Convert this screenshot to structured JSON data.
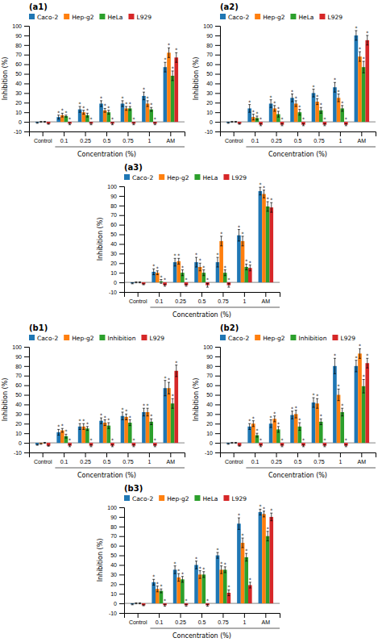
{
  "chart_data": [
    {
      "type": "bar",
      "title": "(a1)",
      "xlabel": "Concentration (%)",
      "ylabel": "Inhibition (%)",
      "categories": [
        "Control",
        "0.1",
        "0.25",
        "0.5",
        "0.75",
        "1",
        "AM"
      ],
      "series": [
        {
          "name": "Caco-2",
          "values": [
            -1,
            5,
            13,
            19,
            19,
            27,
            57
          ],
          "errors": [
            0.5,
            2,
            3,
            3,
            3,
            4,
            5
          ],
          "annotations": [
            null,
            "*",
            "*",
            "*",
            "*",
            "*",
            "*"
          ]
        },
        {
          "name": "Hep-g2",
          "values": [
            0,
            7,
            10,
            12,
            14,
            19,
            72
          ],
          "errors": [
            0.5,
            2,
            2,
            2,
            2,
            3,
            5
          ],
          "annotations": [
            null,
            "*",
            "*",
            "*",
            "*",
            "*",
            "*"
          ]
        },
        {
          "name": "HeLa",
          "values": [
            0,
            6,
            7,
            10,
            14,
            13,
            48
          ],
          "errors": [
            0.5,
            1,
            2,
            2,
            2,
            2,
            5
          ],
          "annotations": [
            null,
            "*",
            "*",
            "*",
            "*",
            "*",
            "*"
          ]
        },
        {
          "name": "L929",
          "values": [
            -2,
            -2,
            -2,
            -2,
            -2,
            -2,
            67
          ],
          "errors": [
            0.5,
            1,
            1,
            1,
            1,
            1,
            5
          ],
          "annotations": [
            null,
            "*",
            "*",
            "*",
            "*",
            "*",
            "*"
          ]
        }
      ],
      "ylim": [
        -10,
        100
      ],
      "yticks": [
        -10,
        0,
        10,
        20,
        30,
        40,
        50,
        60,
        70,
        80,
        90,
        100
      ],
      "grid": false,
      "legend": "top"
    },
    {
      "type": "bar",
      "title": "(a2)",
      "xlabel": "Concentration (%)",
      "ylabel": "Inhibition (%)",
      "categories": [
        "Control",
        "0.1",
        "0.25",
        "0.5",
        "0.75",
        "1",
        "AM"
      ],
      "series": [
        {
          "name": "Caco-2",
          "values": [
            -1,
            14,
            19,
            25,
            30,
            36,
            90
          ],
          "errors": [
            0.5,
            4,
            4,
            4,
            4,
            5,
            5
          ],
          "annotations": [
            null,
            "*",
            "*",
            "*",
            "*",
            "*",
            "*"
          ]
        },
        {
          "name": "Hep-g2",
          "values": [
            0,
            5,
            14,
            19,
            21,
            25,
            68
          ],
          "errors": [
            0.5,
            3,
            3,
            3,
            3,
            4,
            5
          ],
          "annotations": [
            null,
            "*",
            "*",
            "*",
            "*",
            "*",
            "*"
          ]
        },
        {
          "name": "HeLa",
          "values": [
            0,
            4,
            8,
            10,
            12,
            14,
            57
          ],
          "errors": [
            0.5,
            2,
            3,
            3,
            3,
            3,
            6
          ],
          "annotations": [
            null,
            "*",
            "*",
            "*",
            "*",
            "*",
            "*"
          ]
        },
        {
          "name": "L929",
          "values": [
            -2,
            -3,
            -3,
            -3,
            -3,
            -3,
            85
          ],
          "errors": [
            0.5,
            1,
            1,
            1,
            1,
            1,
            5
          ],
          "annotations": [
            null,
            "*",
            "*",
            "*",
            "*",
            "*",
            "*"
          ]
        }
      ],
      "ylim": [
        -10,
        100
      ],
      "yticks": [
        -10,
        0,
        10,
        20,
        30,
        40,
        50,
        60,
        70,
        80,
        90,
        100
      ],
      "grid": false,
      "legend": "top"
    },
    {
      "type": "bar",
      "title": "(a3)",
      "xlabel": "Concentration (%)",
      "ylabel": "Inhibition (%)",
      "categories": [
        "Control",
        "0.1",
        "0.25",
        "0.5",
        "0.75",
        "1",
        "AM"
      ],
      "series": [
        {
          "name": "Caco-2",
          "values": [
            -1,
            11,
            21,
            21,
            21,
            49,
            95
          ],
          "errors": [
            0.5,
            3,
            4,
            5,
            5,
            6,
            4
          ],
          "annotations": [
            null,
            "*",
            "*",
            "*",
            "*",
            "*",
            "*"
          ]
        },
        {
          "name": "Hep-g2",
          "values": [
            0,
            10,
            22,
            16,
            43,
            43,
            92
          ],
          "errors": [
            0.5,
            2,
            3,
            4,
            5,
            5,
            4
          ],
          "annotations": [
            null,
            "*",
            "*",
            "*",
            "*",
            "*",
            "*"
          ]
        },
        {
          "name": "HeLa",
          "values": [
            0,
            1,
            10,
            10,
            10,
            16,
            79
          ],
          "errors": [
            0.5,
            2,
            3,
            3,
            3,
            3,
            5
          ],
          "annotations": [
            null,
            "*",
            "*",
            "*",
            "*",
            "*",
            "*"
          ]
        },
        {
          "name": "L929",
          "values": [
            -2,
            -3,
            -3,
            -3,
            -3,
            15,
            78
          ],
          "errors": [
            0.5,
            1,
            1,
            2,
            2,
            3,
            5
          ],
          "annotations": [
            null,
            "*",
            "*",
            "*",
            "*",
            "*",
            "*"
          ]
        }
      ],
      "ylim": [
        -10,
        100
      ],
      "yticks": [
        -10,
        0,
        10,
        20,
        30,
        40,
        50,
        60,
        70,
        80,
        90,
        100
      ],
      "grid": false,
      "legend": "top"
    },
    {
      "type": "bar",
      "title": "(b1)",
      "xlabel": "Concentration (%)",
      "ylabel": "Inhibition (%)",
      "categories": [
        "Control",
        "0.1",
        "0.25",
        "0.5",
        "0.75",
        "1",
        "AM"
      ],
      "series": [
        {
          "name": "Caco-2",
          "values": [
            -2,
            11,
            17,
            23,
            28,
            32,
            57
          ],
          "errors": [
            0.5,
            3,
            3,
            3,
            4,
            4,
            8
          ],
          "annotations": [
            null,
            "*",
            "*",
            "*",
            "*",
            "*",
            "*"
          ]
        },
        {
          "name": "Hep-g2",
          "values": [
            -1,
            13,
            17,
            21,
            27,
            32,
            57
          ],
          "errors": [
            0.5,
            2,
            3,
            3,
            3,
            4,
            6
          ],
          "annotations": [
            null,
            "*",
            "*",
            "*",
            "*",
            "*",
            "*"
          ]
        },
        {
          "name": "Inhibition",
          "values": [
            0,
            7,
            15,
            18,
            21,
            22,
            41
          ],
          "errors": [
            0.5,
            2,
            2,
            3,
            3,
            3,
            5
          ],
          "annotations": [
            null,
            "*",
            "*",
            "*",
            "*",
            "*",
            "*"
          ]
        },
        {
          "name": "L929",
          "values": [
            -3,
            -3,
            -3,
            -3,
            -3,
            -3,
            75
          ],
          "errors": [
            0.5,
            1,
            1,
            1,
            1,
            1,
            6
          ],
          "annotations": [
            null,
            "*",
            "*",
            "*",
            "*",
            "*",
            "*"
          ]
        }
      ],
      "ylim": [
        -10,
        100
      ],
      "yticks": [
        -10,
        0,
        10,
        20,
        30,
        40,
        50,
        60,
        70,
        80,
        90,
        100
      ],
      "grid": false,
      "legend": "top"
    },
    {
      "type": "bar",
      "title": "(b2)",
      "xlabel": "Concentration (%)",
      "ylabel": "Inhibition (%)",
      "categories": [
        "Control",
        "0.1",
        "0.25",
        "0.5",
        "0.75",
        "1",
        "AM"
      ],
      "series": [
        {
          "name": "Caco-2",
          "values": [
            -1,
            17,
            20,
            29,
            42,
            80,
            80
          ],
          "errors": [
            0.5,
            3,
            4,
            4,
            5,
            8,
            6
          ],
          "annotations": [
            null,
            "*",
            "*",
            "*",
            "*",
            "*",
            "*"
          ]
        },
        {
          "name": "Hep-g2",
          "values": [
            0,
            20,
            25,
            30,
            41,
            50,
            93
          ],
          "errors": [
            0.5,
            3,
            3,
            4,
            5,
            6,
            5
          ],
          "annotations": [
            null,
            "*",
            "*",
            "*",
            "*",
            "*",
            "*"
          ]
        },
        {
          "name": "Inhibition",
          "values": [
            0,
            8,
            14,
            17,
            22,
            32,
            59
          ],
          "errors": [
            0.5,
            2,
            3,
            4,
            3,
            4,
            7
          ],
          "annotations": [
            null,
            "*",
            "*",
            "*",
            "*",
            "*",
            "*"
          ]
        },
        {
          "name": "L929",
          "values": [
            -3,
            -3,
            -3,
            -3,
            -3,
            -3,
            83
          ],
          "errors": [
            0.5,
            1,
            1,
            1,
            1,
            1,
            5
          ],
          "annotations": [
            null,
            "*",
            "*",
            "*",
            "*",
            "*",
            "*"
          ]
        }
      ],
      "ylim": [
        -10,
        100
      ],
      "yticks": [
        -10,
        0,
        10,
        20,
        30,
        40,
        50,
        60,
        70,
        80,
        90,
        100
      ],
      "grid": false,
      "legend": "top"
    },
    {
      "type": "bar",
      "title": "(b3)",
      "xlabel": "Concentration (%)",
      "ylabel": "Inhibition (%)",
      "categories": [
        "Control",
        "0.1",
        "0.25",
        "0.5",
        "0.75",
        "1",
        "AM"
      ],
      "series": [
        {
          "name": "Caco-2",
          "values": [
            -1,
            22,
            35,
            40,
            50,
            83,
            95
          ],
          "errors": [
            0.5,
            3,
            4,
            4,
            3,
            6,
            3
          ],
          "annotations": [
            null,
            "*",
            "*",
            "*",
            "*",
            "*",
            "*"
          ]
        },
        {
          "name": "Hep-g2",
          "values": [
            0,
            15,
            27,
            30,
            35,
            63,
            93
          ],
          "errors": [
            0.5,
            3,
            4,
            4,
            4,
            5,
            3
          ],
          "annotations": [
            null,
            "*",
            "*",
            "*",
            "*",
            "*",
            "*"
          ]
        },
        {
          "name": "HeLa",
          "values": [
            0,
            13,
            25,
            30,
            35,
            48,
            70
          ],
          "errors": [
            0.5,
            2,
            3,
            3,
            3,
            4,
            5
          ],
          "annotations": [
            null,
            "*",
            "*",
            "*",
            "*",
            "*",
            "*"
          ]
        },
        {
          "name": "L929",
          "values": [
            -2,
            -2,
            -2,
            -2,
            11,
            19,
            90
          ],
          "errors": [
            0.5,
            1,
            1,
            1,
            3,
            3,
            4
          ],
          "annotations": [
            null,
            "*",
            "*",
            "*",
            "*",
            "*",
            "*"
          ]
        }
      ],
      "ylim": [
        -10,
        100
      ],
      "yticks": [
        -10,
        0,
        10,
        20,
        30,
        40,
        50,
        60,
        70,
        80,
        90,
        100
      ],
      "grid": false,
      "legend": "top"
    }
  ]
}
